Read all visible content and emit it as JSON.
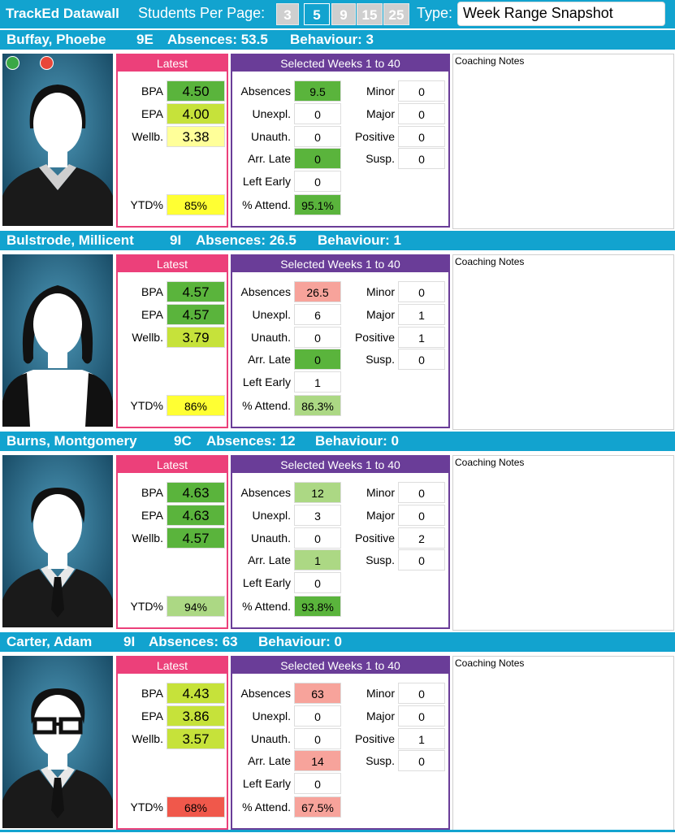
{
  "app": {
    "title": "TrackEd Datawall",
    "students_per_page_label": "Students Per Page:",
    "page_sizes": [
      "3",
      "5",
      "9",
      "15",
      "25"
    ],
    "selected_page_size": "5",
    "type_label": "Type:",
    "type_value": "Week Range Snapshot"
  },
  "labels": {
    "latest": "Latest",
    "selected_weeks": "Selected Weeks 1 to 40",
    "bpa": "BPA",
    "epa": "EPA",
    "wellb": "Wellb.",
    "ytd": "YTD%",
    "absences": "Absences",
    "unexpl": "Unexpl.",
    "unauth": "Unauth.",
    "arr_late": "Arr. Late",
    "left_early": "Left Early",
    "attend": "% Attend.",
    "minor": "Minor",
    "major": "Major",
    "positive": "Positive",
    "susp": "Susp.",
    "coaching_notes": "Coaching Notes",
    "absences_prefix": "Absences:",
    "behaviour_prefix": "Behaviour:"
  },
  "colors": {
    "header_blue": "#12a3cf",
    "latest_pink": "#ec407a",
    "weeks_purple": "#6a3d98",
    "green_dark": "#5ab43c",
    "green_lime": "#c6e23a",
    "green_light": "#acd884",
    "yellow": "#ffff33",
    "yellow_pale": "#ffff99",
    "red_light": "#f7a39b",
    "red": "#f0584b"
  },
  "students": [
    {
      "name": "Buffay, Phoebe",
      "class": "9E",
      "absences_total": "53.5",
      "behaviour_total": "3",
      "avatar": "female-short-hair",
      "bpa": {
        "v": "4.50",
        "c": "#5ab43c"
      },
      "epa": {
        "v": "4.00",
        "c": "#c6e23a"
      },
      "wellb": {
        "v": "3.38",
        "c": "#ffff99"
      },
      "ytd": {
        "v": "85%",
        "c": "#ffff33"
      },
      "absences": {
        "v": "9.5",
        "c": "#5ab43c"
      },
      "unexpl": {
        "v": "0",
        "c": "#ffffff"
      },
      "unauth": {
        "v": "0",
        "c": "#ffffff"
      },
      "arr_late": {
        "v": "0",
        "c": "#5ab43c"
      },
      "left_early": {
        "v": "0",
        "c": "#ffffff"
      },
      "attend": {
        "v": "95.1%",
        "c": "#5ab43c"
      },
      "minor": "0",
      "major": "0",
      "positive": "0",
      "susp": "0",
      "status_dots": [
        "#3aa845",
        "#e8473a"
      ]
    },
    {
      "name": "Bulstrode, Millicent",
      "class": "9I",
      "absences_total": "26.5",
      "behaviour_total": "1",
      "avatar": "female-bob-hair",
      "bpa": {
        "v": "4.57",
        "c": "#5ab43c"
      },
      "epa": {
        "v": "4.57",
        "c": "#5ab43c"
      },
      "wellb": {
        "v": "3.79",
        "c": "#c6e23a"
      },
      "ytd": {
        "v": "86%",
        "c": "#ffff33"
      },
      "absences": {
        "v": "26.5",
        "c": "#f7a39b"
      },
      "unexpl": {
        "v": "6",
        "c": "#ffffff"
      },
      "unauth": {
        "v": "0",
        "c": "#ffffff"
      },
      "arr_late": {
        "v": "0",
        "c": "#5ab43c"
      },
      "left_early": {
        "v": "1",
        "c": "#ffffff"
      },
      "attend": {
        "v": "86.3%",
        "c": "#acd884"
      },
      "minor": "0",
      "major": "1",
      "positive": "1",
      "susp": "0",
      "status_dots": []
    },
    {
      "name": "Burns, Montgomery",
      "class": "9C",
      "absences_total": "12",
      "behaviour_total": "0",
      "avatar": "male-tie",
      "bpa": {
        "v": "4.63",
        "c": "#5ab43c"
      },
      "epa": {
        "v": "4.63",
        "c": "#5ab43c"
      },
      "wellb": {
        "v": "4.57",
        "c": "#5ab43c"
      },
      "ytd": {
        "v": "94%",
        "c": "#acd884"
      },
      "absences": {
        "v": "12",
        "c": "#acd884"
      },
      "unexpl": {
        "v": "3",
        "c": "#ffffff"
      },
      "unauth": {
        "v": "0",
        "c": "#ffffff"
      },
      "arr_late": {
        "v": "1",
        "c": "#acd884"
      },
      "left_early": {
        "v": "0",
        "c": "#ffffff"
      },
      "attend": {
        "v": "93.8%",
        "c": "#5ab43c"
      },
      "minor": "0",
      "major": "0",
      "positive": "2",
      "susp": "0",
      "status_dots": []
    },
    {
      "name": "Carter, Adam",
      "class": "9I",
      "absences_total": "63",
      "behaviour_total": "0",
      "avatar": "male-glasses-tie",
      "bpa": {
        "v": "4.43",
        "c": "#c6e23a"
      },
      "epa": {
        "v": "3.86",
        "c": "#c6e23a"
      },
      "wellb": {
        "v": "3.57",
        "c": "#c6e23a"
      },
      "ytd": {
        "v": "68%",
        "c": "#f0584b"
      },
      "absences": {
        "v": "63",
        "c": "#f7a39b"
      },
      "unexpl": {
        "v": "0",
        "c": "#ffffff"
      },
      "unauth": {
        "v": "0",
        "c": "#ffffff"
      },
      "arr_late": {
        "v": "14",
        "c": "#f7a39b"
      },
      "left_early": {
        "v": "0",
        "c": "#ffffff"
      },
      "attend": {
        "v": "67.5%",
        "c": "#f7a39b"
      },
      "minor": "0",
      "major": "0",
      "positive": "1",
      "susp": "0",
      "status_dots": []
    }
  ]
}
